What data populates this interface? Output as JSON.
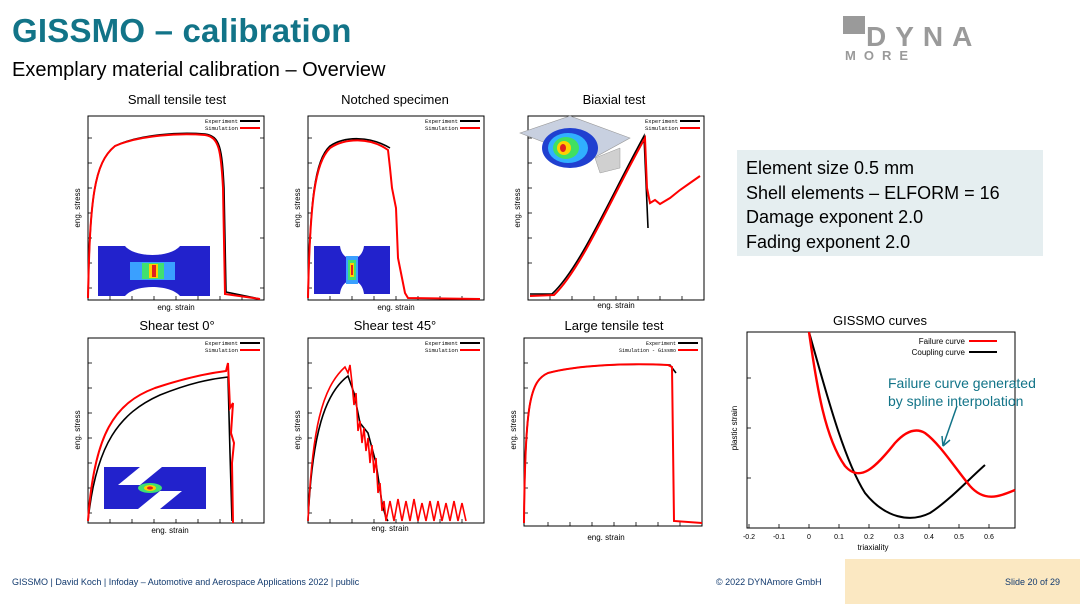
{
  "header": {
    "title": "GISSMO – calibration",
    "subtitle": "Exemplary material calibration – Overview",
    "logo_top": "DYNA",
    "logo_bottom": "MORE"
  },
  "info_box": {
    "lines": [
      "Element size 0.5 mm",
      "Shell elements – ELFORM = 16",
      "Damage exponent 2.0",
      "Fading exponent 2.0"
    ]
  },
  "plots": [
    {
      "title": "Small tensile test",
      "xlabel": "eng. strain",
      "ylabel": "eng. stress",
      "legend": [
        "Experiment",
        "Simulation"
      ]
    },
    {
      "title": "Notched specimen",
      "xlabel": "eng. strain",
      "ylabel": "eng. stress",
      "legend": [
        "Experiment",
        "Simulation"
      ]
    },
    {
      "title": "Biaxial test",
      "xlabel": "eng. strain",
      "ylabel": "eng. stress",
      "legend": [
        "Experiment",
        "Simulation"
      ]
    },
    {
      "title": "Shear test 0°",
      "xlabel": "eng. strain",
      "ylabel": "eng. stress",
      "legend": [
        "Experiment",
        "Simulation"
      ]
    },
    {
      "title": "Shear test 45°",
      "xlabel": "eng. strain",
      "ylabel": "eng. stress",
      "legend": [
        "Experiment",
        "Simulation"
      ]
    },
    {
      "title": "Large tensile test",
      "xlabel": "eng. strain",
      "ylabel": "eng. stress",
      "legend": [
        "Experiment",
        "Simulation - Gissmo"
      ]
    }
  ],
  "gissmo": {
    "title": "GISSMO curves",
    "xlabel": "triaxiality",
    "ylabel": "plastic strain",
    "legend": [
      "Failure curve",
      "Coupling curve"
    ],
    "xticks": [
      "-0.2",
      "-0.1",
      "0",
      "0.1",
      "0.2",
      "0.3",
      "0.4",
      "0.5",
      "0.6"
    ],
    "annotation": [
      "Failure curve generated",
      "by spline interpolation"
    ]
  },
  "colors": {
    "title": "#127488",
    "experiment": "#000000",
    "simulation": "#ff0000",
    "info_bg": "#e5eef0",
    "footer_box": "#fbe8c2"
  },
  "footer": {
    "left": "GISSMO | David Koch | Infoday – Automotive and Aerospace Applications 2022 | public",
    "center": "© 2022 DYNAmore GmbH",
    "right": "Slide 20 of 29"
  }
}
